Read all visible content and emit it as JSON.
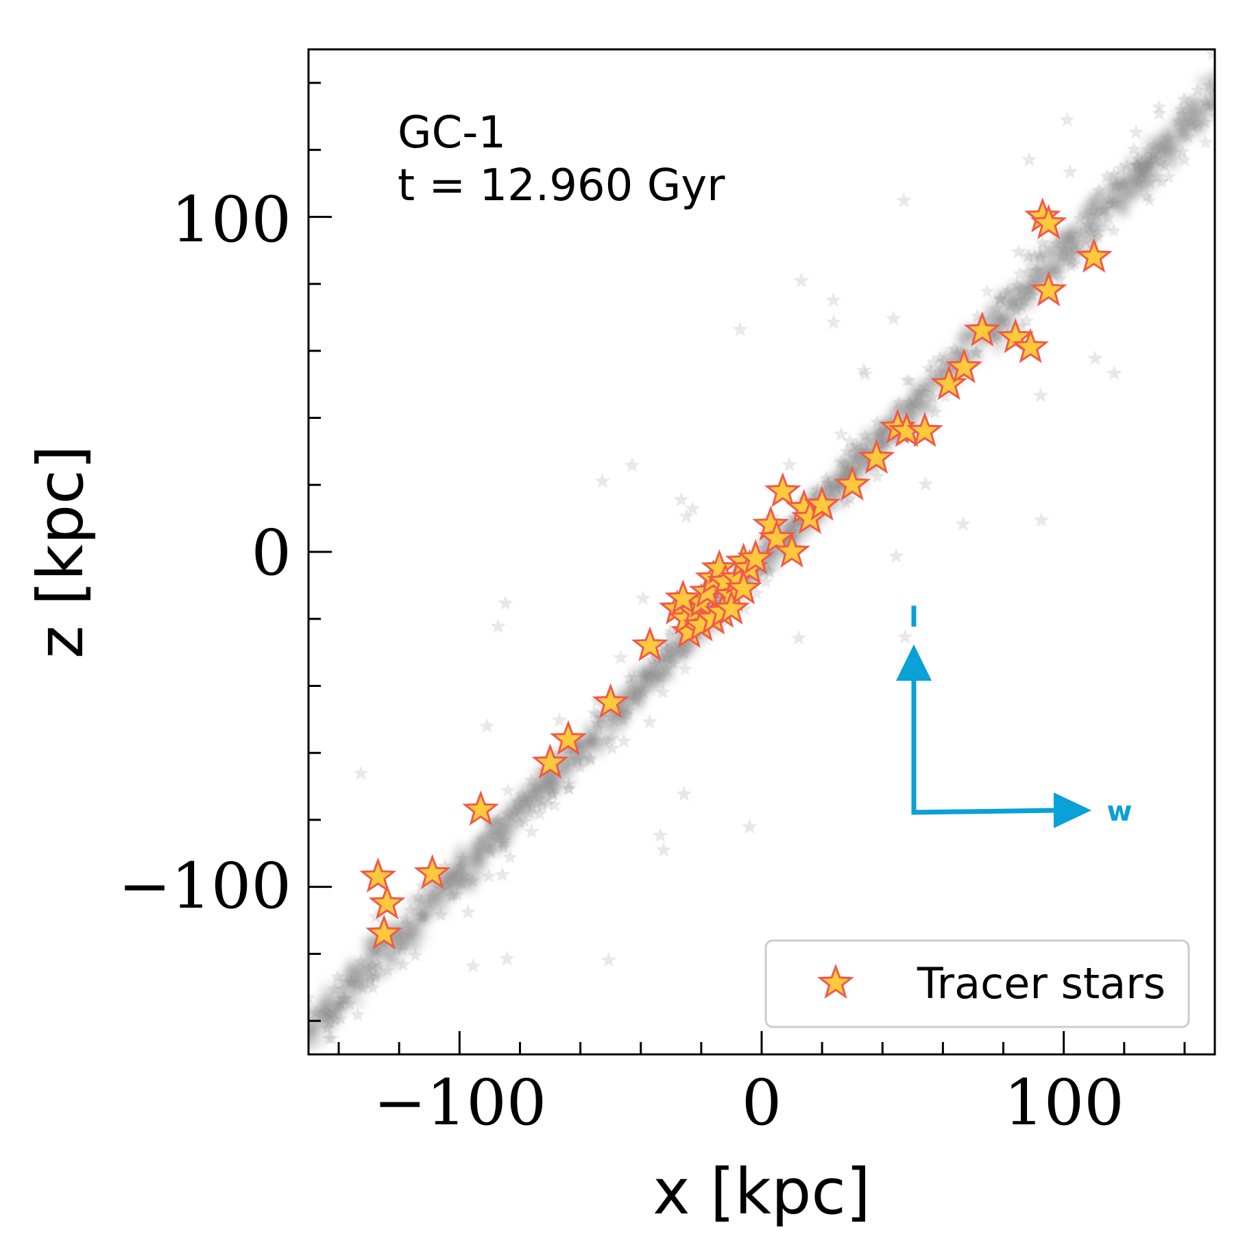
{
  "chart_data": {
    "type": "scatter",
    "xlabel": "x [kpc]",
    "ylabel": "z [kpc]",
    "xlim": [
      -150,
      150
    ],
    "ylim": [
      -150,
      150
    ],
    "xticks_major": [
      -100,
      0,
      100
    ],
    "xtick_labels": [
      "−100",
      "0",
      "100"
    ],
    "yticks_major": [
      -100,
      0,
      100
    ],
    "ytick_labels": [
      "−100",
      "0",
      "100"
    ],
    "minor_tick_step": 20,
    "grid": false,
    "annotation": {
      "line1": "GC-1",
      "line2": "t = 12.960 Gyr"
    },
    "legend": {
      "placement": "lower-right",
      "entries": [
        "Tracer stars"
      ]
    },
    "vectors": {
      "vertical_label": "l",
      "horizontal_label": "w",
      "color": "#0aa0d8"
    },
    "colors": {
      "stream": "#8a8a8a",
      "tracer_fill": "#ffc93c",
      "tracer_edge": "#f05a4a"
    },
    "series": [
      {
        "name": "Tracer stars",
        "points": [
          [
            -127,
            -97
          ],
          [
            -124,
            -105
          ],
          [
            -125,
            -114
          ],
          [
            -109,
            -96
          ],
          [
            -93,
            -77
          ],
          [
            -70,
            -63
          ],
          [
            -64,
            -56
          ],
          [
            -50,
            -45
          ],
          [
            -37,
            -28
          ],
          [
            -24,
            -24
          ],
          [
            -28,
            -17
          ],
          [
            -25,
            -20
          ],
          [
            -22,
            -18
          ],
          [
            -20,
            -15
          ],
          [
            -18,
            -12
          ],
          [
            -16,
            -8
          ],
          [
            -14,
            -5
          ],
          [
            -12,
            -9
          ],
          [
            -10,
            -13
          ],
          [
            -8,
            -8
          ],
          [
            -6,
            -3
          ],
          [
            -4,
            -5
          ],
          [
            -2,
            -2
          ],
          [
            -20,
            -22
          ],
          [
            -16,
            -20
          ],
          [
            -13,
            -18
          ],
          [
            -10,
            -17
          ],
          [
            -6,
            -11
          ],
          [
            -26,
            -14
          ],
          [
            3,
            8
          ],
          [
            5,
            4
          ],
          [
            7,
            18
          ],
          [
            10,
            0
          ],
          [
            14,
            13
          ],
          [
            16,
            10
          ],
          [
            20,
            14
          ],
          [
            30,
            20
          ],
          [
            38,
            28
          ],
          [
            45,
            37
          ],
          [
            48,
            36
          ],
          [
            54,
            36
          ],
          [
            62,
            50
          ],
          [
            67,
            55
          ],
          [
            73,
            66
          ],
          [
            84,
            64
          ],
          [
            89,
            61
          ],
          [
            93,
            100
          ],
          [
            95,
            98
          ],
          [
            95,
            78
          ],
          [
            110,
            88
          ]
        ]
      }
    ]
  }
}
